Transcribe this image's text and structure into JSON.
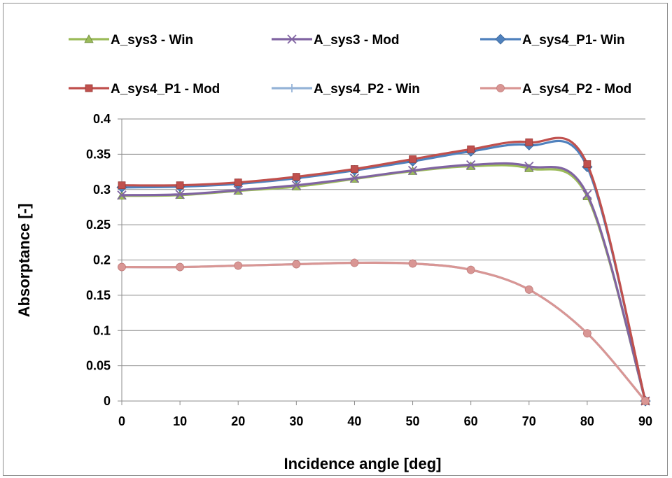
{
  "chart_data": {
    "type": "line",
    "title": "",
    "xlabel": "Incidence angle [deg]",
    "ylabel": "Absorptance [-]",
    "x": [
      0,
      10,
      20,
      30,
      40,
      50,
      60,
      70,
      80,
      90
    ],
    "xlim": [
      0,
      90
    ],
    "ylim": [
      0,
      0.4
    ],
    "xticks": [
      "0",
      "10",
      "20",
      "30",
      "40",
      "50",
      "60",
      "70",
      "80",
      "90"
    ],
    "yticks": [
      "0",
      "0.05",
      "0.1",
      "0.15",
      "0.2",
      "0.25",
      "0.3",
      "0.35",
      "0.4"
    ],
    "grid": "horizontal",
    "legend_position": "top",
    "series": [
      {
        "name": "A_sys3 - Win",
        "color": "#9bbb59",
        "marker": "triangle",
        "values": [
          0.291,
          0.292,
          0.298,
          0.304,
          0.315,
          0.326,
          0.333,
          0.33,
          0.29,
          0.0
        ]
      },
      {
        "name": "A_sys3 - Mod",
        "color": "#8064a2",
        "marker": "x",
        "values": [
          0.292,
          0.293,
          0.299,
          0.306,
          0.316,
          0.327,
          0.335,
          0.333,
          0.293,
          0.0
        ]
      },
      {
        "name": "A_sys4_P1- Win",
        "color": "#4f81bd",
        "marker": "diamond",
        "values": [
          0.303,
          0.304,
          0.308,
          0.316,
          0.327,
          0.34,
          0.354,
          0.363,
          0.332,
          0.0
        ]
      },
      {
        "name": "A_sys4_P1 - Mod",
        "color": "#c0504d",
        "marker": "square",
        "values": [
          0.306,
          0.306,
          0.31,
          0.318,
          0.329,
          0.343,
          0.357,
          0.367,
          0.336,
          0.0
        ]
      },
      {
        "name": "A_sys4_P2 - Win",
        "color": "#95b3d7",
        "marker": "plus",
        "values": [
          0.19,
          0.19,
          0.192,
          0.194,
          0.196,
          0.195,
          0.186,
          0.158,
          0.096,
          0.0
        ]
      },
      {
        "name": "A_sys4_P2 - Mod",
        "color": "#d99694",
        "marker": "circle",
        "values": [
          0.19,
          0.19,
          0.192,
          0.194,
          0.196,
          0.195,
          0.186,
          0.158,
          0.096,
          0.0
        ]
      }
    ]
  }
}
